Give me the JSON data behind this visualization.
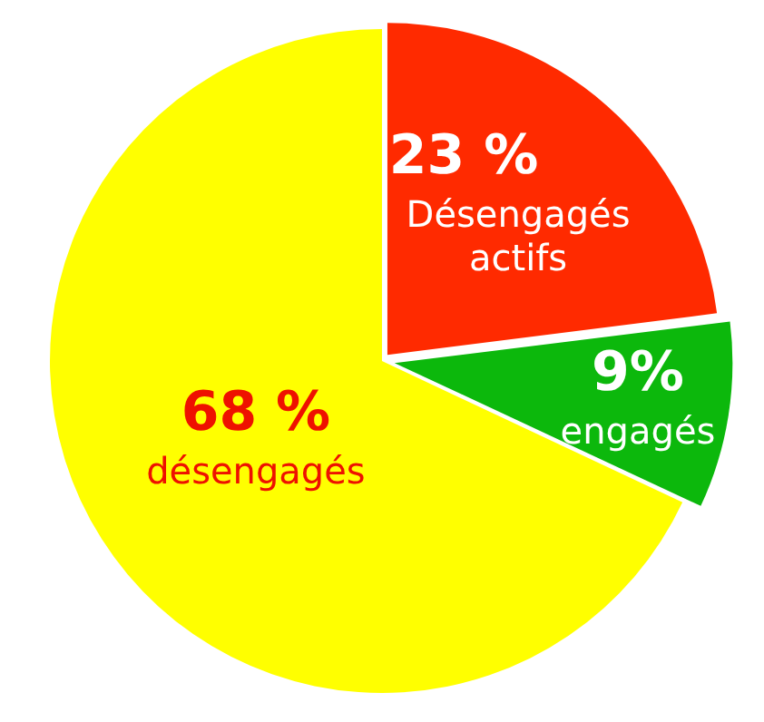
{
  "chart_data": {
    "type": "pie",
    "categories": [
      "Désengagés actifs",
      "engagés",
      "désengagés"
    ],
    "values": [
      23,
      9,
      68
    ],
    "colors": [
      "#ff2a00",
      "#0cb80c",
      "#ffff00"
    ],
    "value_labels": [
      "23 %",
      "9%",
      "68 %"
    ]
  }
}
